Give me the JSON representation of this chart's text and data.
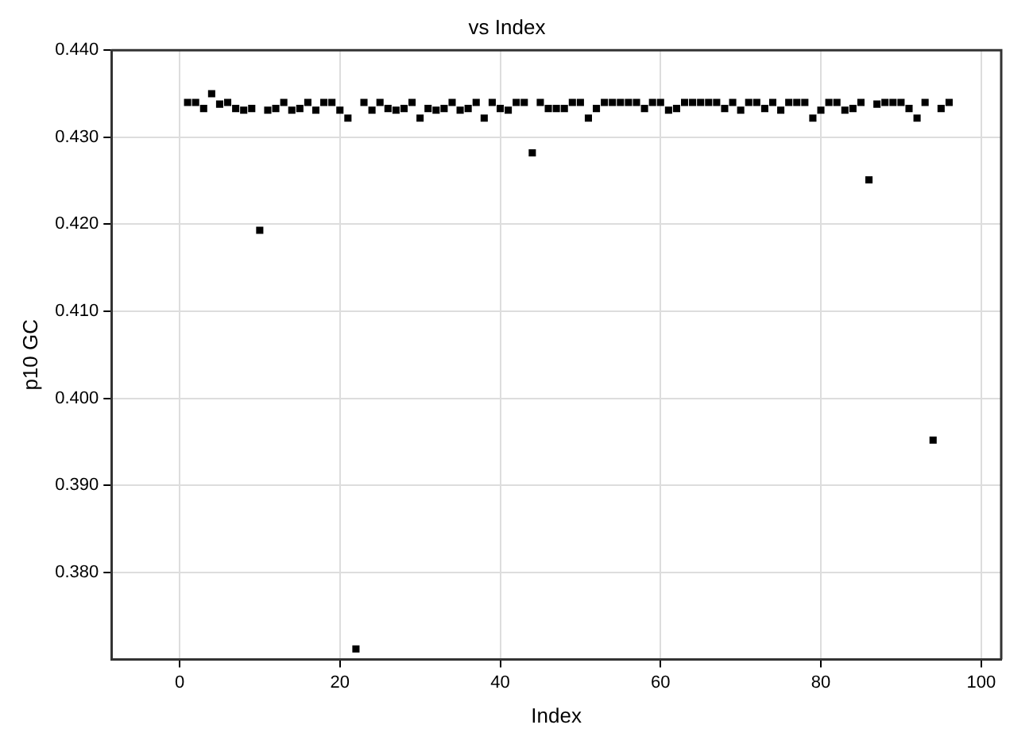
{
  "chart_data": {
    "type": "scatter",
    "title": "vs Index",
    "xlabel": "Index",
    "ylabel": "p10 GC",
    "x": [
      1,
      2,
      3,
      4,
      5,
      6,
      7,
      8,
      9,
      10,
      11,
      12,
      13,
      14,
      15,
      16,
      17,
      18,
      19,
      20,
      21,
      22,
      23,
      24,
      25,
      26,
      27,
      28,
      29,
      30,
      31,
      32,
      33,
      34,
      35,
      36,
      37,
      38,
      39,
      40,
      41,
      42,
      43,
      44,
      45,
      46,
      47,
      48,
      49,
      50,
      51,
      52,
      53,
      54,
      55,
      56,
      57,
      58,
      59,
      60,
      61,
      62,
      63,
      64,
      65,
      66,
      67,
      68,
      69,
      70,
      71,
      72,
      73,
      74,
      75,
      76,
      77,
      78,
      79,
      80,
      81,
      82,
      83,
      84,
      85,
      86,
      87,
      88,
      89,
      90,
      91,
      92,
      93,
      94,
      95,
      96
    ],
    "series": [
      {
        "color": "#000000",
        "values": [
          0.434,
          0.434,
          0.4333,
          0.435,
          0.4338,
          0.434,
          0.4333,
          0.4331,
          0.4333,
          0.4193,
          0.4331,
          0.4333,
          0.434,
          0.4331,
          0.4333,
          0.434,
          0.4331,
          0.434,
          0.434,
          0.4331,
          0.4322,
          0.3712,
          0.434,
          0.4331,
          0.434,
          0.4333,
          0.4331,
          0.4333,
          0.434,
          0.4322,
          0.4333,
          0.4331,
          0.4333,
          0.434,
          0.4331,
          0.4333,
          0.434,
          0.4322,
          0.434,
          0.4333,
          0.4331,
          0.434,
          0.434,
          0.4282,
          0.434,
          0.4333,
          0.4333,
          0.4333,
          0.434,
          0.434,
          0.4322,
          0.4333,
          0.434,
          0.434,
          0.434,
          0.434,
          0.434,
          0.4333,
          0.434,
          0.434,
          0.4331,
          0.4333,
          0.434,
          0.434,
          0.434,
          0.434,
          0.434,
          0.4333,
          0.434,
          0.4331,
          0.434,
          0.434,
          0.4333,
          0.434,
          0.4331,
          0.434,
          0.434,
          0.434,
          0.4322,
          0.4331,
          0.434,
          0.434,
          0.4331,
          0.4333,
          0.434,
          0.4251,
          0.4338,
          0.434,
          0.434,
          0.434,
          0.4333,
          0.4322,
          0.434,
          0.3952,
          0.4333,
          0.434
        ]
      }
    ],
    "xlim": [
      -8.5,
      102.5
    ],
    "xticks": [
      0,
      20,
      40,
      60,
      80,
      100
    ],
    "ylim": [
      0.37,
      0.44
    ],
    "yticks": [
      {
        "value": 0.38,
        "label": "0.380"
      },
      {
        "value": 0.39,
        "label": "0.390"
      },
      {
        "value": 0.4,
        "label": "0.400"
      },
      {
        "value": 0.41,
        "label": "0.410"
      },
      {
        "value": 0.42,
        "label": "0.420"
      },
      {
        "value": 0.43,
        "label": "0.430"
      },
      {
        "value": 0.44,
        "label": "0.440"
      }
    ],
    "grid": true,
    "legend": false,
    "marker": "square"
  }
}
